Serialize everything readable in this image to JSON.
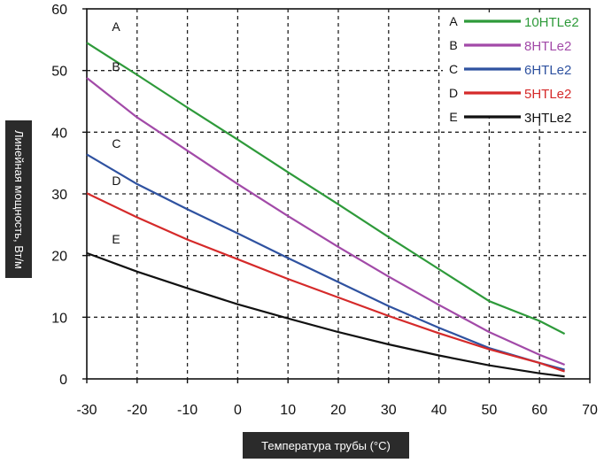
{
  "chart_data": {
    "type": "line",
    "xlabel": "Температура трубы (°C)",
    "ylabel": "Линейная мощность, Вт/м",
    "xlim": [
      -30,
      70
    ],
    "ylim": [
      0,
      60
    ],
    "xticks": [
      "-30",
      "-20",
      "-10",
      "0",
      "10",
      "20",
      "30",
      "40",
      "50",
      "60",
      "70"
    ],
    "yticks": [
      "0",
      "10",
      "20",
      "30",
      "40",
      "50",
      "60"
    ],
    "grid": "dashed",
    "legend_position": "top-right",
    "series": [
      {
        "letter": "A",
        "name": "10HTLe2",
        "color": "#2e9a3a",
        "x": [
          -30,
          -20,
          -10,
          0,
          10,
          20,
          30,
          40,
          50,
          60,
          65
        ],
        "y": [
          54.5,
          49.3,
          44,
          38.8,
          33.5,
          28.3,
          23,
          17.8,
          12.6,
          9.4,
          7.3
        ]
      },
      {
        "letter": "B",
        "name": "8HTLe2",
        "color": "#a24aa8",
        "x": [
          -30,
          -20,
          -10,
          0,
          10,
          20,
          30,
          40,
          50,
          60,
          65
        ],
        "y": [
          48.8,
          42.4,
          37,
          31.6,
          26.4,
          21.4,
          16.6,
          12,
          7.6,
          3.9,
          2.3
        ]
      },
      {
        "letter": "C",
        "name": "6HTLe2",
        "color": "#2f52a0",
        "x": [
          -30,
          -20,
          -10,
          0,
          10,
          20,
          30,
          40,
          50,
          60,
          65
        ],
        "y": [
          36.4,
          31.6,
          27.5,
          23.6,
          19.6,
          15.7,
          11.8,
          8.3,
          5,
          2.6,
          1.5
        ]
      },
      {
        "letter": "D",
        "name": "5HTLe2",
        "color": "#d52a2a",
        "x": [
          -30,
          -20,
          -10,
          0,
          10,
          20,
          30,
          40,
          50,
          60,
          65
        ],
        "y": [
          30.1,
          26.2,
          22.6,
          19.4,
          16.2,
          13.2,
          10.2,
          7.4,
          4.8,
          2.6,
          1.2
        ]
      },
      {
        "letter": "E",
        "name": "3HTLe2",
        "color": "#111111",
        "x": [
          -30,
          -20,
          -10,
          0,
          10,
          20,
          30,
          40,
          50,
          60,
          65
        ],
        "y": [
          20.4,
          17.4,
          14.7,
          12.1,
          9.8,
          7.6,
          5.6,
          3.8,
          2.2,
          0.9,
          0.4
        ]
      }
    ],
    "curve_labels": [
      {
        "text": "A",
        "x": -25,
        "y": 55
      },
      {
        "text": "B",
        "x": -25,
        "y": 48.5
      },
      {
        "text": "C",
        "x": -25,
        "y": 36
      },
      {
        "text": "D",
        "x": -25,
        "y": 30
      },
      {
        "text": "E",
        "x": -25,
        "y": 20.5
      }
    ]
  }
}
